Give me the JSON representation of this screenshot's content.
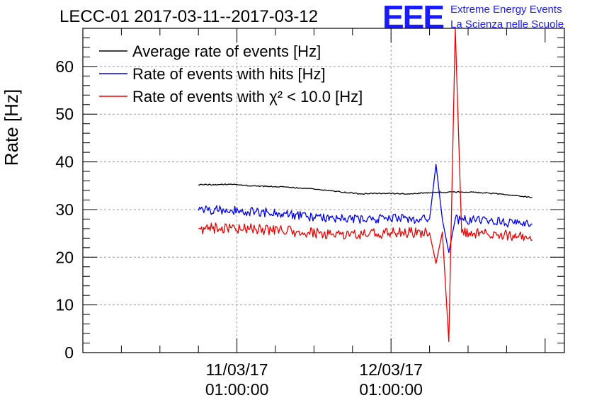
{
  "header": {
    "title": "LECC-01 2017-03-11--2017-03-12"
  },
  "logo": {
    "letters": "EEE",
    "line1": "Extreme Energy Events",
    "line2": "La Scienza nelle Scuole",
    "color": "#1a1aff"
  },
  "chart_data": {
    "type": "line",
    "title": "LECC-01 2017-03-11--2017-03-12",
    "xlabel": "",
    "ylabel": "Rate [Hz]",
    "ylim": [
      0,
      68
    ],
    "yticks": [
      0,
      10,
      20,
      30,
      40,
      50,
      60
    ],
    "xlim": [
      "2017-03-10 01:00",
      "2017-03-13 04:00"
    ],
    "xticks": [
      {
        "x": "2017-03-11 01:00",
        "line1": "11/03/17",
        "line2": "01:00:00"
      },
      {
        "x": "2017-03-12 01:00",
        "line1": "12/03/17",
        "line2": "01:00:00"
      }
    ],
    "grid": true,
    "legend_position": "top-left",
    "series": [
      {
        "name": "Average rate of events [Hz]",
        "color": "#000000",
        "x": [
          "2017-03-10 19:00",
          "2017-03-11 00:00",
          "2017-03-11 04:00",
          "2017-03-11 08:00",
          "2017-03-11 12:00",
          "2017-03-11 16:00",
          "2017-03-11 20:00",
          "2017-03-12 00:00",
          "2017-03-12 04:00",
          "2017-03-12 08:00",
          "2017-03-12 12:00",
          "2017-03-12 16:00",
          "2017-03-12 20:00",
          "2017-03-12 23:00"
        ],
        "values": [
          35.2,
          35.3,
          34.9,
          34.8,
          34.4,
          33.9,
          33.3,
          33.4,
          33.3,
          33.6,
          33.7,
          33.5,
          33.0,
          32.5
        ]
      },
      {
        "name": "Rate of events with hits [Hz]",
        "color": "#0000ee",
        "x": [
          "2017-03-10 19:00",
          "2017-03-11 00:00",
          "2017-03-11 04:00",
          "2017-03-11 08:00",
          "2017-03-11 12:00",
          "2017-03-11 16:00",
          "2017-03-11 20:00",
          "2017-03-12 00:00",
          "2017-03-12 04:00",
          "2017-03-12 07:00",
          "2017-03-12 08:00",
          "2017-03-12 09:00",
          "2017-03-12 10:00",
          "2017-03-12 11:00",
          "2017-03-12 12:00",
          "2017-03-12 16:00",
          "2017-03-12 20:00",
          "2017-03-12 23:00"
        ],
        "values": [
          29.8,
          29.9,
          29.6,
          29.1,
          28.6,
          28.2,
          27.9,
          28.0,
          28.1,
          28.0,
          39.5,
          27.9,
          21.0,
          28.0,
          27.8,
          27.6,
          27.2,
          26.9
        ]
      },
      {
        "name": "Rate of events with χ² < 10.0 [Hz]",
        "color": "#ee0000",
        "x": [
          "2017-03-10 19:00",
          "2017-03-11 00:00",
          "2017-03-11 04:00",
          "2017-03-11 08:00",
          "2017-03-11 12:00",
          "2017-03-11 16:00",
          "2017-03-11 20:00",
          "2017-03-12 00:00",
          "2017-03-12 04:00",
          "2017-03-12 07:00",
          "2017-03-12 08:00",
          "2017-03-12 09:00",
          "2017-03-12 10:00",
          "2017-03-12 11:00",
          "2017-03-12 12:00",
          "2017-03-12 16:00",
          "2017-03-12 20:00",
          "2017-03-12 23:00"
        ],
        "values": [
          26.0,
          26.2,
          25.8,
          25.6,
          25.1,
          24.9,
          24.7,
          25.0,
          25.2,
          25.1,
          18.7,
          25.3,
          2.3,
          68.0,
          25.2,
          24.9,
          24.6,
          23.6
        ]
      }
    ]
  }
}
